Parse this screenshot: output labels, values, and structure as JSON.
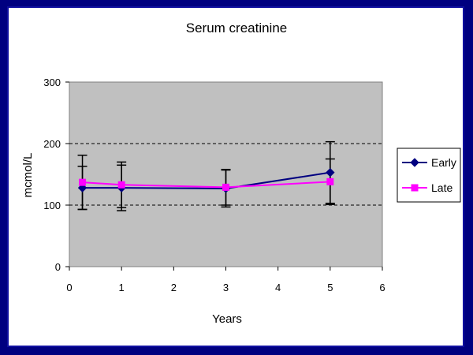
{
  "chart_data": {
    "type": "line",
    "title": "Serum creatinine",
    "xlabel": "Years",
    "ylabel": "mcmol/L",
    "xlim": [
      0,
      6
    ],
    "ylim": [
      0,
      300
    ],
    "x_ticks": [
      "0",
      "1",
      "2",
      "3",
      "4",
      "5",
      "6"
    ],
    "y_ticks": [
      "0",
      "100",
      "200",
      "300"
    ],
    "grid": "horizontal dashed at 100 and 200",
    "legend_position": "right",
    "plot_background": "#c0c0c0",
    "series": [
      {
        "name": "Early",
        "color": "#000080",
        "marker": "diamond",
        "x": [
          0.25,
          1,
          3,
          5
        ],
        "y": [
          128,
          128,
          127,
          153
        ],
        "error": [
          35,
          37,
          30,
          50
        ]
      },
      {
        "name": "Late",
        "color": "#ff00ff",
        "marker": "square",
        "x": [
          0.25,
          1,
          3,
          5
        ],
        "y": [
          137,
          133,
          129,
          138
        ],
        "error": [
          44,
          37,
          29,
          37
        ]
      }
    ]
  }
}
